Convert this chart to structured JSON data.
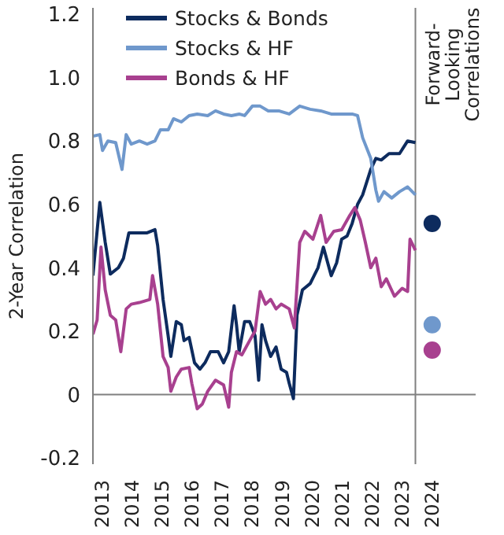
{
  "chart_data": {
    "type": "line",
    "ylabel": "2-Year Correlation",
    "xlim": [
      2012.68,
      2025.45
    ],
    "xticks": [
      2013,
      2014,
      2015,
      2016,
      2017,
      2018,
      2019,
      2020,
      2021,
      2022,
      2023,
      2024
    ],
    "ylim": [
      -0.22,
      1.22
    ],
    "yticks": [
      -0.2,
      0,
      0.2,
      0.4,
      0.6,
      0.8,
      {
        "value": 1,
        "label": "1.0"
      },
      1.2
    ],
    "grid": false,
    "legend": "top left",
    "ref_lines": [
      {
        "axis": "y",
        "value": 0,
        "color": "#808080"
      },
      {
        "axis": "x",
        "value": 2023.44,
        "label": "Forward-Looking Correlations",
        "color": "#808080"
      }
    ],
    "series": [
      {
        "name": "Stocks & Bonds",
        "color": "#0d2b5e",
        "x": [
          2012.68,
          2012.91,
          2013.09,
          2013.26,
          2013.53,
          2013.7,
          2013.88,
          2014.23,
          2014.49,
          2014.75,
          2014.84,
          2015.02,
          2015.19,
          2015.28,
          2015.46,
          2015.63,
          2015.72,
          2015.89,
          2016.07,
          2016.25,
          2016.42,
          2016.6,
          2016.86,
          2017.04,
          2017.21,
          2017.39,
          2017.47,
          2017.56,
          2017.74,
          2017.91,
          2018.09,
          2018.21,
          2018.32,
          2018.44,
          2018.61,
          2018.79,
          2018.96,
          2019.14,
          2019.23,
          2019.37,
          2019.49,
          2019.67,
          2019.93,
          2020.19,
          2020.37,
          2020.63,
          2020.81,
          2020.98,
          2021.16,
          2021.33,
          2021.51,
          2021.68,
          2021.95,
          2022.12,
          2022.3,
          2022.56,
          2022.91,
          2023.18,
          2023.44
        ],
        "values": [
          0.375,
          0.606,
          0.48,
          0.38,
          0.4,
          0.43,
          0.51,
          0.51,
          0.51,
          0.52,
          0.47,
          0.3,
          0.185,
          0.12,
          0.23,
          0.22,
          0.17,
          0.18,
          0.1,
          0.08,
          0.1,
          0.135,
          0.135,
          0.1,
          0.135,
          0.28,
          0.22,
          0.135,
          0.23,
          0.23,
          0.185,
          0.045,
          0.22,
          0.17,
          0.12,
          0.15,
          0.08,
          0.07,
          0.035,
          -0.013,
          0.25,
          0.33,
          0.35,
          0.4,
          0.465,
          0.375,
          0.415,
          0.49,
          0.5,
          0.54,
          0.6,
          0.63,
          0.71,
          0.745,
          0.74,
          0.76,
          0.76,
          0.8,
          0.795
        ]
      },
      {
        "name": "Stocks & HF",
        "color": "#6f98cc",
        "x": [
          2012.68,
          2012.91,
          2013.0,
          2013.18,
          2013.44,
          2013.65,
          2013.79,
          2013.96,
          2014.23,
          2014.49,
          2014.75,
          2014.93,
          2015.19,
          2015.37,
          2015.63,
          2015.89,
          2016.16,
          2016.51,
          2016.77,
          2017.04,
          2017.3,
          2017.56,
          2017.74,
          2018.0,
          2018.26,
          2018.53,
          2018.88,
          2019.23,
          2019.58,
          2019.93,
          2020.28,
          2020.63,
          2020.98,
          2021.33,
          2021.51,
          2021.68,
          2021.95,
          2022.12,
          2022.21,
          2022.39,
          2022.65,
          2022.91,
          2023.18,
          2023.44
        ],
        "values": [
          0.815,
          0.82,
          0.77,
          0.8,
          0.795,
          0.71,
          0.82,
          0.79,
          0.8,
          0.79,
          0.8,
          0.835,
          0.835,
          0.87,
          0.86,
          0.88,
          0.885,
          0.88,
          0.895,
          0.885,
          0.88,
          0.885,
          0.88,
          0.91,
          0.91,
          0.895,
          0.895,
          0.885,
          0.91,
          0.9,
          0.895,
          0.885,
          0.885,
          0.885,
          0.88,
          0.81,
          0.745,
          0.645,
          0.61,
          0.64,
          0.62,
          0.64,
          0.655,
          0.63
        ]
      },
      {
        "name": "Bonds & HF",
        "color": "#a8408f",
        "x": [
          2012.68,
          2012.82,
          2012.95,
          2013.09,
          2013.26,
          2013.44,
          2013.61,
          2013.79,
          2013.96,
          2014.23,
          2014.58,
          2014.67,
          2014.84,
          2015.02,
          2015.19,
          2015.28,
          2015.46,
          2015.63,
          2015.89,
          2015.98,
          2016.16,
          2016.33,
          2016.51,
          2016.77,
          2017.04,
          2017.21,
          2017.3,
          2017.47,
          2017.65,
          2017.91,
          2018.09,
          2018.26,
          2018.44,
          2018.61,
          2018.79,
          2018.96,
          2019.23,
          2019.4,
          2019.58,
          2019.75,
          2020.02,
          2020.28,
          2020.46,
          2020.72,
          2020.98,
          2021.25,
          2021.42,
          2021.6,
          2021.77,
          2021.95,
          2022.12,
          2022.3,
          2022.47,
          2022.74,
          2023.0,
          2023.18,
          2023.26,
          2023.44
        ],
        "values": [
          0.19,
          0.235,
          0.465,
          0.33,
          0.25,
          0.235,
          0.135,
          0.27,
          0.285,
          0.29,
          0.3,
          0.375,
          0.285,
          0.12,
          0.085,
          0.01,
          0.055,
          0.08,
          0.085,
          0.035,
          -0.045,
          -0.03,
          0.01,
          0.045,
          0.03,
          -0.04,
          0.07,
          0.135,
          0.125,
          0.17,
          0.2,
          0.325,
          0.285,
          0.3,
          0.27,
          0.285,
          0.27,
          0.21,
          0.48,
          0.515,
          0.49,
          0.565,
          0.48,
          0.515,
          0.52,
          0.565,
          0.59,
          0.55,
          0.48,
          0.4,
          0.43,
          0.34,
          0.365,
          0.31,
          0.335,
          0.325,
          0.49,
          0.455
        ]
      },
      {
        "type": "scatter",
        "marker": "circle",
        "color": "#0d2b5e",
        "x": [
          2024
        ],
        "values": [
          0.54
        ]
      },
      {
        "type": "scatter",
        "marker": "circle",
        "color": "#6f98cc",
        "x": [
          2024
        ],
        "values": [
          0.22
        ]
      },
      {
        "type": "scatter",
        "marker": "circle",
        "color": "#a8408f",
        "x": [
          2024
        ],
        "values": [
          0.14
        ]
      }
    ]
  }
}
